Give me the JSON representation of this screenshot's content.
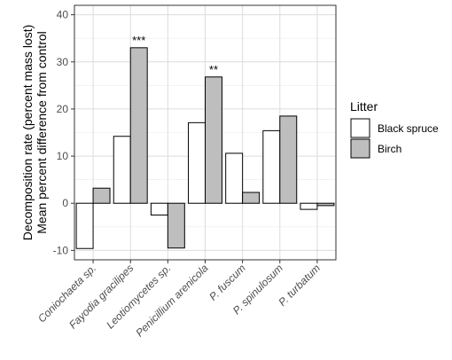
{
  "chart_data": {
    "type": "bar",
    "ylabel_line1": "Decomposition rate (percent mass lost)",
    "ylabel_line2": "Mean percent difference from control",
    "ylim": [
      -12,
      42
    ],
    "yticks": [
      -10,
      0,
      10,
      20,
      30,
      40
    ],
    "grid": true,
    "legend_position": "right",
    "legend_title": "Litter",
    "categories": [
      "Coniochaeta sp.",
      "Fayodia gracilipes",
      "Leotiomycetes sp.",
      "Penicillium arenicola",
      "P. fuscum",
      "P. spinulosum",
      "P. turbatum"
    ],
    "series": [
      {
        "name": "Black spruce",
        "color": "#ffffff",
        "values": [
          -9.6,
          14.2,
          -2.5,
          17.1,
          10.6,
          15.4,
          -1.3
        ]
      },
      {
        "name": "Birch",
        "color": "#bebebe",
        "values": [
          3.2,
          33.0,
          -9.5,
          26.8,
          2.3,
          18.5,
          -0.5
        ]
      }
    ],
    "annotations": [
      {
        "category": "Fayodia gracilipes",
        "series": "Birch",
        "text": "***"
      },
      {
        "category": "Penicillium arenicola",
        "series": "Birch",
        "text": "**"
      }
    ]
  }
}
